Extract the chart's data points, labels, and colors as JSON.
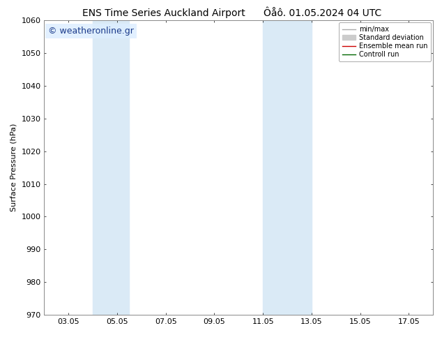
{
  "title_left": "ENS Time Series Auckland Airport",
  "title_right": "Ôåô. 01.05.2024 04 UTC",
  "ylabel": "Surface Pressure (hPa)",
  "ylim": [
    970,
    1060
  ],
  "yticks": [
    970,
    980,
    990,
    1000,
    1010,
    1020,
    1030,
    1040,
    1050,
    1060
  ],
  "xtick_labels": [
    "03.05",
    "05.05",
    "07.05",
    "09.05",
    "11.05",
    "13.05",
    "15.05",
    "17.05"
  ],
  "xtick_days": [
    3,
    5,
    7,
    9,
    11,
    13,
    15,
    17
  ],
  "xlim_days": [
    2,
    18
  ],
  "shaded_regions": [
    {
      "x_start": 4.0,
      "x_end": 5.5
    },
    {
      "x_start": 11.0,
      "x_end": 13.0
    }
  ],
  "shade_color": "#daeaf6",
  "watermark_text": "© weatheronline.gr",
  "watermark_color": "#1a3a8a",
  "watermark_bg": "#ddeeff",
  "legend_entries": [
    {
      "label": "min/max",
      "color": "#aaaaaa",
      "linewidth": 1.0,
      "linestyle": "-",
      "type": "line"
    },
    {
      "label": "Standard deviation",
      "color": "#cccccc",
      "linewidth": 5,
      "linestyle": "-",
      "type": "patch"
    },
    {
      "label": "Ensemble mean run",
      "color": "#cc0000",
      "linewidth": 1.0,
      "linestyle": "-",
      "type": "line"
    },
    {
      "label": "Controll run",
      "color": "#006600",
      "linewidth": 1.0,
      "linestyle": "-",
      "type": "line"
    }
  ],
  "background_color": "#ffffff",
  "spine_color": "#888888",
  "font_size_title": 10,
  "font_size_axis_label": 8,
  "font_size_tick": 8,
  "font_size_legend": 7,
  "font_size_watermark": 9
}
